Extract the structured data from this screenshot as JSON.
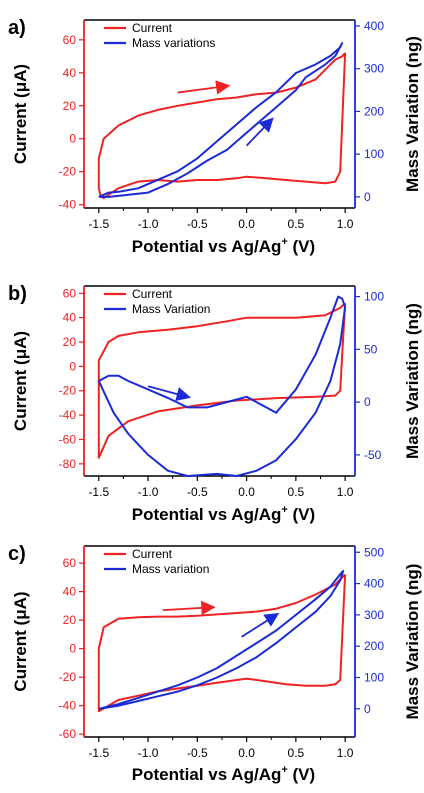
{
  "colors": {
    "current": "#ee2222",
    "mass": "#1a2bd6",
    "axis": "#000000"
  },
  "chart_data": [
    {
      "panel_label": "a)",
      "type": "line",
      "xlabel": "Potential vs Ag/Ag",
      "xlabel_sup": "+",
      "xlabel_tail": " (V)",
      "ylabel_left": "Current (μA)",
      "ylabel_right": "Mass Variation (ng)",
      "xlim": [
        -1.65,
        1.1
      ],
      "ylim_left": [
        -42,
        72
      ],
      "ylim_right": [
        -26,
        414
      ],
      "x_ticks": [
        "-1.5",
        "-1.0",
        "-0.5",
        "0.0",
        "0.5",
        "1.0"
      ],
      "left_ticks": [
        "60",
        "40",
        "20",
        "0",
        "-20",
        "-40"
      ],
      "right_ticks": [
        "400",
        "300",
        "200",
        "100",
        "0"
      ],
      "legend": [
        "Current",
        "Mass variations"
      ],
      "series": [
        {
          "name": "Current",
          "axis": "left",
          "x": [
            1.0,
            0.97,
            0.9,
            0.7,
            0.5,
            0.3,
            0.1,
            -0.1,
            -0.3,
            -0.5,
            -0.7,
            -0.9,
            -1.1,
            -1.3,
            -1.45,
            -1.5,
            -1.5,
            -1.48,
            -1.45,
            -1.3,
            -1.1,
            -0.9,
            -0.7,
            -0.5,
            -0.3,
            -0.1,
            0.0,
            0.2,
            0.4,
            0.6,
            0.8,
            0.9,
            0.95,
            1.0
          ],
          "y": [
            52,
            50,
            48,
            36,
            31,
            28,
            27,
            25,
            24,
            22,
            20,
            17.5,
            14,
            8,
            0,
            -12,
            -30,
            -35,
            -36,
            -30,
            -26,
            -25,
            -26,
            -25,
            -25,
            -24,
            -23,
            -24,
            -25,
            -26,
            -27,
            -26,
            -20,
            52
          ]
        },
        {
          "name": "Mass variations",
          "axis": "right",
          "x": [
            -1.5,
            -1.4,
            -1.3,
            -1.1,
            -0.9,
            -0.7,
            -0.5,
            -0.3,
            -0.1,
            0.1,
            0.3,
            0.5,
            0.7,
            0.85,
            0.95,
            0.97,
            0.9,
            0.8,
            0.6,
            0.5,
            0.3,
            0.2,
            0.0,
            -0.2,
            -0.4,
            -0.6,
            -0.8,
            -1.0,
            -1.2,
            -1.4,
            -1.5
          ],
          "y": [
            0,
            10,
            12,
            20,
            40,
            60,
            90,
            130,
            170,
            210,
            245,
            290,
            310,
            330,
            350,
            360,
            330,
            310,
            280,
            250,
            210,
            190,
            150,
            110,
            85,
            55,
            30,
            10,
            5,
            0,
            0
          ]
        }
      ],
      "annotations": [
        {
          "text": "arrow",
          "color": "current",
          "from": [
            -0.7,
            28
          ],
          "to": [
            -0.2,
            32
          ]
        },
        {
          "text": "arrow",
          "color": "mass",
          "from": [
            0.0,
            120
          ],
          "to": [
            0.25,
            180
          ]
        }
      ]
    },
    {
      "panel_label": "b)",
      "type": "line",
      "xlabel": "Potential vs Ag/Ag",
      "xlabel_sup": "+",
      "xlabel_tail": " (V)",
      "ylabel_left": "Current (μA)",
      "ylabel_right": "Mass Variation (ng)",
      "xlim": [
        -1.65,
        1.1
      ],
      "ylim_left": [
        -90,
        66
      ],
      "ylim_right": [
        -70,
        110
      ],
      "x_ticks": [
        "-1.5",
        "-1.0",
        "-0.5",
        "0.0",
        "0.5",
        "1.0"
      ],
      "left_ticks": [
        "60",
        "40",
        "20",
        "0",
        "-20",
        "-40",
        "-60",
        "-80"
      ],
      "right_ticks": [
        "100",
        "50",
        "0",
        "-50"
      ],
      "legend": [
        "Current",
        "Mass Variation"
      ],
      "series": [
        {
          "name": "Current",
          "axis": "left",
          "x": [
            1.0,
            0.95,
            0.8,
            0.5,
            0.2,
            0.0,
            -0.2,
            -0.5,
            -0.8,
            -1.1,
            -1.3,
            -1.4,
            -1.5,
            -1.5,
            -1.4,
            -1.2,
            -0.9,
            -0.5,
            -0.1,
            0.3,
            0.7,
            0.9,
            0.95,
            1.0
          ],
          "y": [
            52,
            48,
            42,
            40,
            40,
            40,
            37,
            33,
            30,
            28,
            25,
            20,
            5,
            -75,
            -57,
            -45,
            -37,
            -32,
            -28,
            -26,
            -25,
            -24,
            -20,
            52
          ]
        },
        {
          "name": "Mass Variation",
          "axis": "right",
          "x": [
            -1.5,
            -1.4,
            -1.3,
            -1.2,
            -1.0,
            -0.8,
            -0.6,
            -0.4,
            -0.2,
            0.0,
            0.1,
            0.2,
            0.3,
            0.5,
            0.7,
            0.85,
            0.93,
            0.97,
            1.0,
            0.95,
            0.85,
            0.7,
            0.5,
            0.3,
            0.1,
            -0.1,
            -0.3,
            -0.6,
            -0.8,
            -1.0,
            -1.2,
            -1.35,
            -1.5
          ],
          "y": [
            20,
            25,
            25,
            20,
            12,
            4,
            -5,
            -5,
            0,
            5,
            0,
            -5,
            -10,
            12,
            45,
            80,
            100,
            98,
            90,
            55,
            20,
            -10,
            -35,
            -55,
            -65,
            -70,
            -68,
            -70,
            -65,
            -50,
            -30,
            -10,
            20
          ]
        }
      ],
      "annotations": [
        {
          "text": "arrow",
          "color": "mass",
          "from": [
            -1.0,
            15
          ],
          "to": [
            -0.6,
            5
          ]
        }
      ]
    },
    {
      "panel_label": "c)",
      "type": "line",
      "xlabel": "Potential vs Ag/Ag",
      "xlabel_sup": "+",
      "xlabel_tail": " (V)",
      "ylabel_left": "Current (μA)",
      "ylabel_right": "Mass Variation (ng)",
      "xlim": [
        -1.65,
        1.1
      ],
      "ylim_left": [
        -62,
        72
      ],
      "ylim_right": [
        -90,
        520
      ],
      "x_ticks": [
        "-1.5",
        "-1.0",
        "-0.5",
        "0.0",
        "0.5",
        "1.0"
      ],
      "left_ticks": [
        "60",
        "40",
        "20",
        "0",
        "-20",
        "-40",
        "-60"
      ],
      "right_ticks": [
        "500",
        "400",
        "300",
        "200",
        "100",
        "0"
      ],
      "legend": [
        "Current",
        "Mass variation"
      ],
      "series": [
        {
          "name": "Current",
          "axis": "left",
          "x": [
            1.0,
            0.97,
            0.9,
            0.7,
            0.5,
            0.3,
            0.1,
            -0.1,
            -0.3,
            -0.5,
            -0.7,
            -0.9,
            -1.1,
            -1.3,
            -1.45,
            -1.5,
            -1.5,
            -1.45,
            -1.3,
            -1.1,
            -0.9,
            -0.7,
            -0.5,
            -0.3,
            -0.1,
            0.0,
            0.2,
            0.4,
            0.6,
            0.8,
            0.9,
            0.95,
            1.0
          ],
          "y": [
            52,
            50,
            45,
            38,
            32,
            28,
            26,
            25,
            24,
            23,
            22.5,
            22.5,
            22,
            21,
            15,
            0,
            -44,
            -42,
            -36,
            -33,
            -30,
            -28,
            -26,
            -24,
            -22,
            -21,
            -23,
            -25,
            -26,
            -26,
            -25,
            -22,
            52
          ]
        },
        {
          "name": "Mass variation",
          "axis": "right",
          "x": [
            -1.5,
            -1.3,
            -1.1,
            -0.9,
            -0.7,
            -0.5,
            -0.3,
            -0.1,
            0.1,
            0.3,
            0.5,
            0.7,
            0.85,
            0.95,
            0.98,
            0.95,
            0.85,
            0.7,
            0.5,
            0.3,
            0.1,
            -0.1,
            -0.3,
            -0.5,
            -0.7,
            -0.9,
            -1.1,
            -1.3,
            -1.5
          ],
          "y": [
            0,
            15,
            35,
            55,
            75,
            100,
            130,
            170,
            210,
            250,
            300,
            350,
            390,
            430,
            440,
            410,
            360,
            310,
            260,
            210,
            165,
            130,
            100,
            75,
            55,
            40,
            25,
            10,
            0
          ]
        }
      ],
      "annotations": [
        {
          "text": "arrow",
          "color": "current",
          "from": [
            -0.85,
            27
          ],
          "to": [
            -0.35,
            29
          ]
        },
        {
          "text": "arrow",
          "color": "mass",
          "from": [
            -0.05,
            230
          ],
          "to": [
            0.3,
            300
          ]
        }
      ]
    }
  ]
}
